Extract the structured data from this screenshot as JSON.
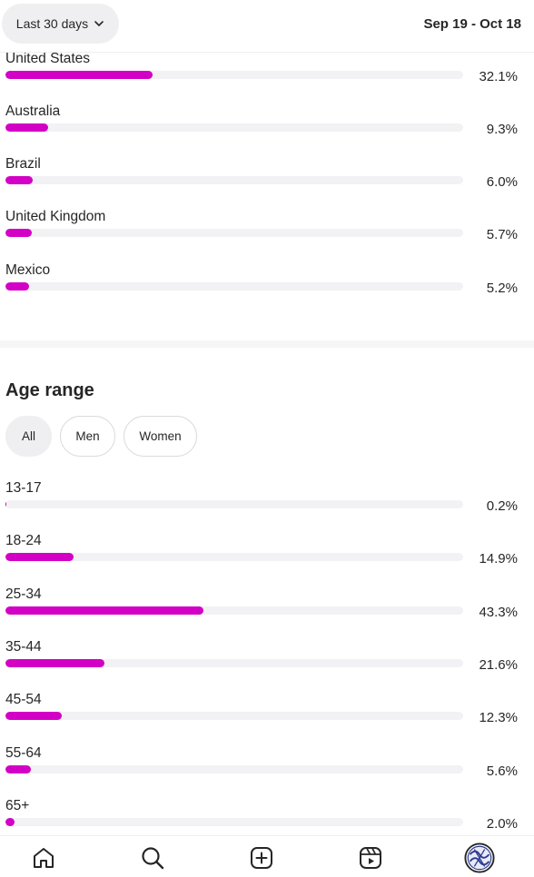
{
  "header": {
    "range_label": "Last 30 days",
    "date_range": "Sep 19 - Oct 18"
  },
  "locations": [
    {
      "label": "United States",
      "value": "32.1%",
      "pct": 32.1
    },
    {
      "label": "Australia",
      "value": "9.3%",
      "pct": 9.3
    },
    {
      "label": "Brazil",
      "value": "6.0%",
      "pct": 6.0
    },
    {
      "label": "United Kingdom",
      "value": "5.7%",
      "pct": 5.7
    },
    {
      "label": "Mexico",
      "value": "5.2%",
      "pct": 5.2
    }
  ],
  "age_section": {
    "title": "Age range",
    "filters": [
      "All",
      "Men",
      "Women"
    ],
    "active_filter": "All",
    "rows": [
      {
        "label": "13-17",
        "value": "0.2%",
        "pct": 0.2
      },
      {
        "label": "18-24",
        "value": "14.9%",
        "pct": 14.9
      },
      {
        "label": "25-34",
        "value": "43.3%",
        "pct": 43.3
      },
      {
        "label": "35-44",
        "value": "21.6%",
        "pct": 21.6
      },
      {
        "label": "45-54",
        "value": "12.3%",
        "pct": 12.3
      },
      {
        "label": "55-64",
        "value": "5.6%",
        "pct": 5.6
      },
      {
        "label": "65+",
        "value": "2.0%",
        "pct": 2.0
      }
    ]
  },
  "colors": {
    "bar_fill": "#d300c5",
    "bar_track": "#f2f2f4"
  },
  "bottom_nav": {
    "items": [
      "home-icon",
      "search-icon",
      "create-icon",
      "reels-icon",
      "profile-avatar"
    ]
  }
}
